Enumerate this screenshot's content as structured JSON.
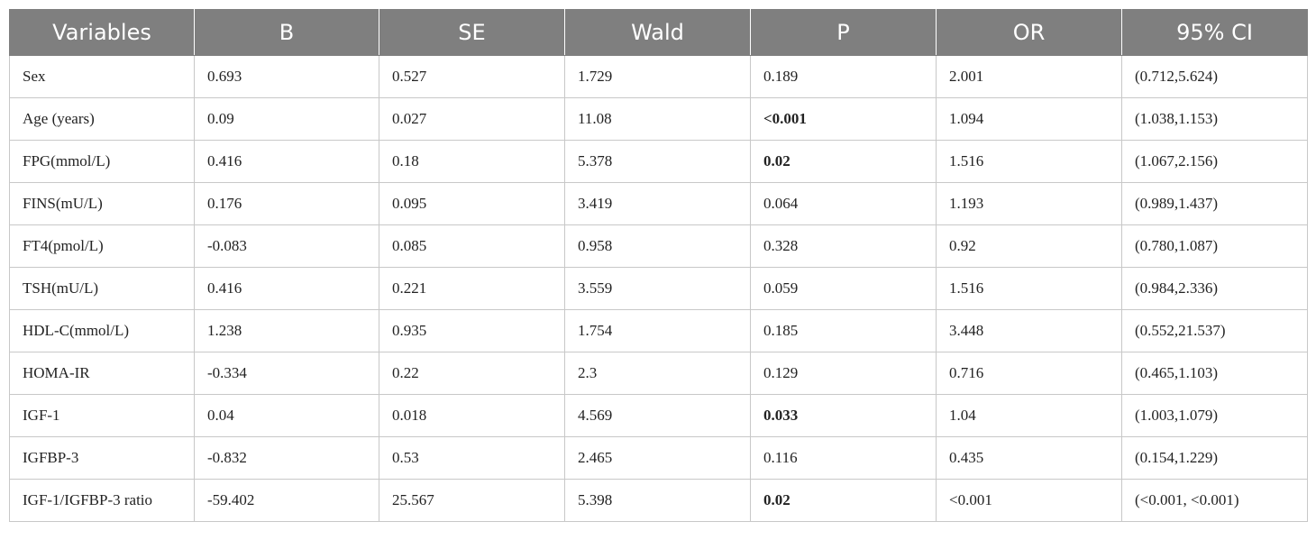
{
  "table": {
    "headers": [
      "Variables",
      "B",
      "SE",
      "Wald",
      "P",
      "OR",
      "95% CI"
    ],
    "rows": [
      {
        "variable": "Sex",
        "b": "0.693",
        "se": "0.527",
        "wald": "1.729",
        "p": "0.189",
        "p_bold": false,
        "or": "2.001",
        "ci": "(0.712,5.624)"
      },
      {
        "variable": "Age (years)",
        "b": "0.09",
        "se": "0.027",
        "wald": "11.08",
        "p": "<0.001",
        "p_bold": true,
        "or": "1.094",
        "ci": "(1.038,1.153)"
      },
      {
        "variable": "FPG(mmol/L)",
        "b": "0.416",
        "se": "0.18",
        "wald": "5.378",
        "p": "0.02",
        "p_bold": true,
        "or": "1.516",
        "ci": "(1.067,2.156)"
      },
      {
        "variable": "FINS(mU/L)",
        "b": "0.176",
        "se": "0.095",
        "wald": "3.419",
        "p": "0.064",
        "p_bold": false,
        "or": "1.193",
        "ci": "(0.989,1.437)"
      },
      {
        "variable": "FT4(pmol/L)",
        "b": "-0.083",
        "se": "0.085",
        "wald": "0.958",
        "p": "0.328",
        "p_bold": false,
        "or": "0.92",
        "ci": "(0.780,1.087)"
      },
      {
        "variable": "TSH(mU/L)",
        "b": "0.416",
        "se": "0.221",
        "wald": "3.559",
        "p": "0.059",
        "p_bold": false,
        "or": "1.516",
        "ci": "(0.984,2.336)"
      },
      {
        "variable": "HDL-C(mmol/L)",
        "b": "1.238",
        "se": "0.935",
        "wald": "1.754",
        "p": "0.185",
        "p_bold": false,
        "or": "3.448",
        "ci": "(0.552,21.537)"
      },
      {
        "variable": "HOMA-IR",
        "b": "-0.334",
        "se": "0.22",
        "wald": "2.3",
        "p": "0.129",
        "p_bold": false,
        "or": "0.716",
        "ci": "(0.465,1.103)"
      },
      {
        "variable": "IGF-1",
        "b": "0.04",
        "se": "0.018",
        "wald": "4.569",
        "p": "0.033",
        "p_bold": true,
        "or": "1.04",
        "ci": "(1.003,1.079)"
      },
      {
        "variable": "IGFBP-3",
        "b": "-0.832",
        "se": "0.53",
        "wald": "2.465",
        "p": "0.116",
        "p_bold": false,
        "or": "0.435",
        "ci": "(0.154,1.229)"
      },
      {
        "variable": "IGF-1/IGFBP-3 ratio",
        "b": "-59.402",
        "se": "25.567",
        "wald": "5.398",
        "p": "0.02",
        "p_bold": true,
        "or": "<0.001",
        "ci": "(<0.001, <0.001)"
      }
    ]
  },
  "colors": {
    "header_bg": "#7f7f7f",
    "header_text": "#ffffff",
    "grid": "#c8c8c8"
  }
}
